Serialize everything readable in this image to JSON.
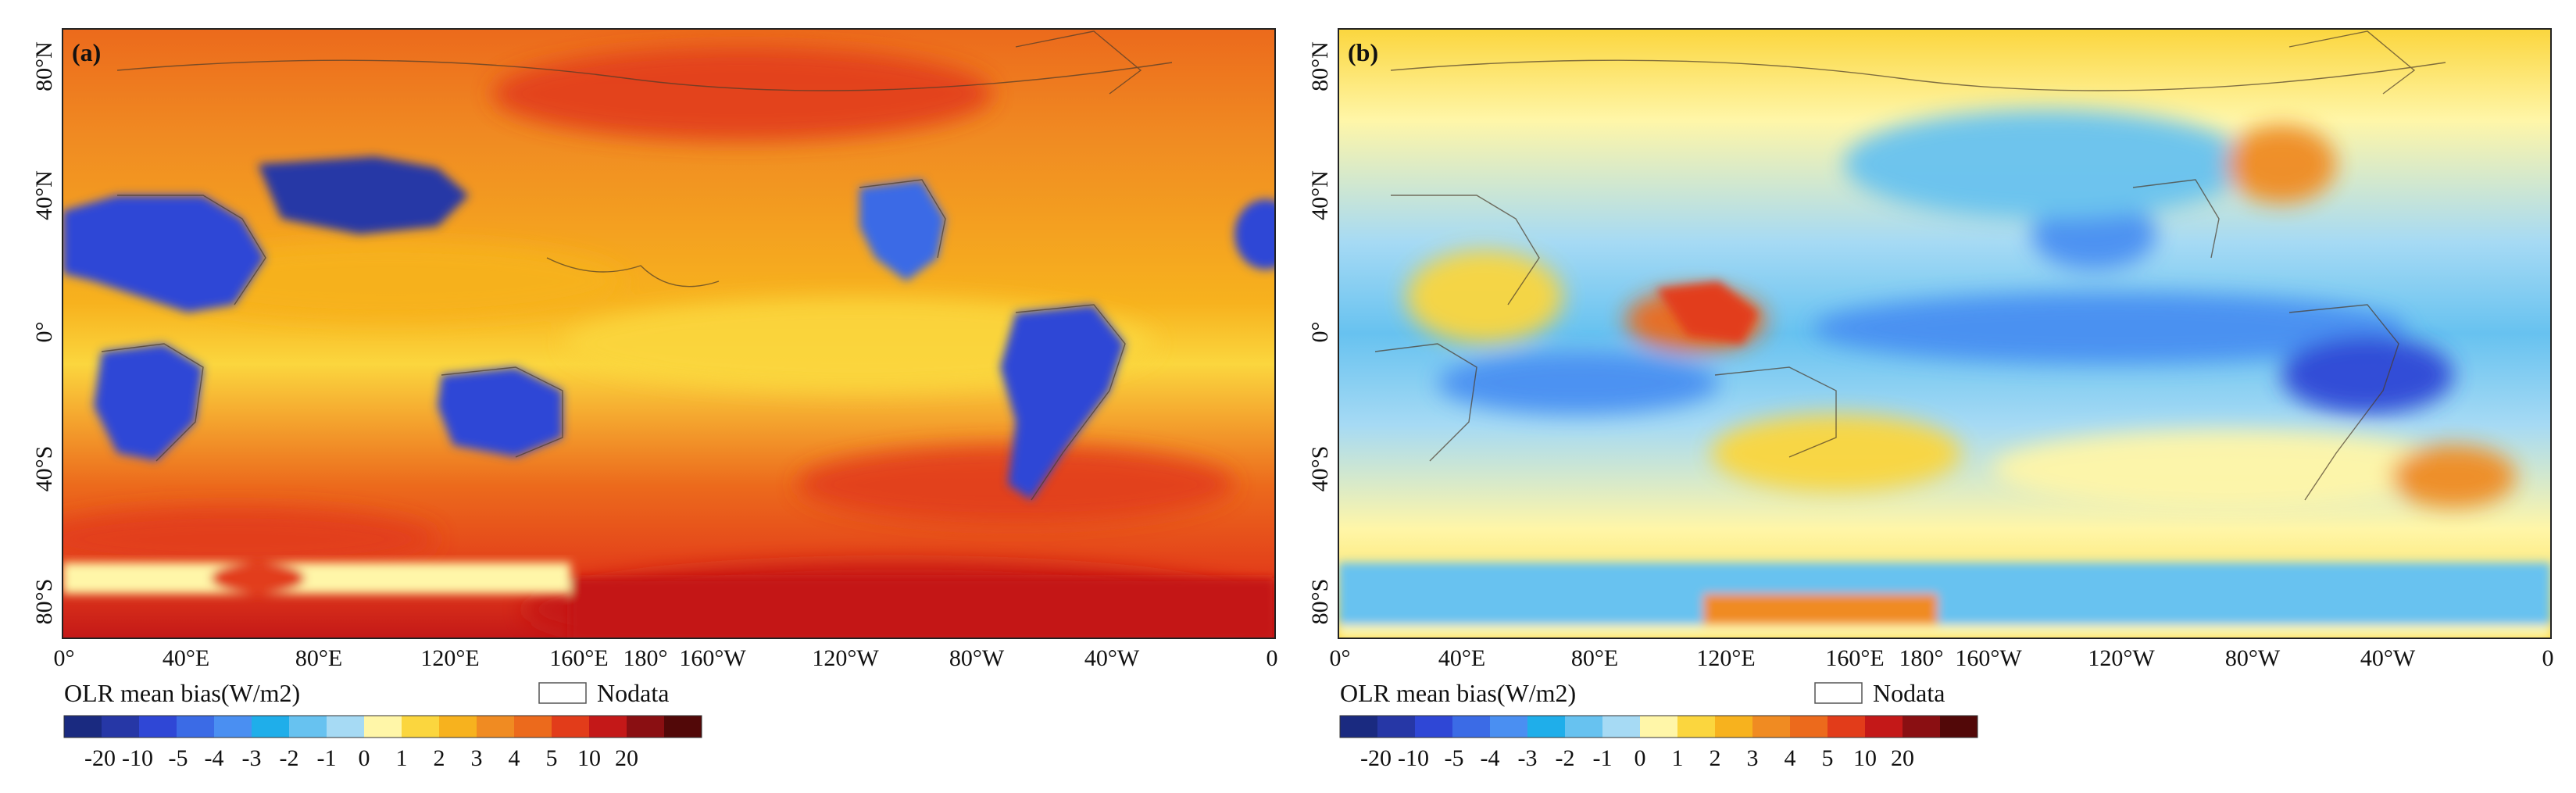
{
  "colors": {
    "scale": [
      "#1a2a80",
      "#2637a6",
      "#2f47d6",
      "#3b6be6",
      "#4a8ff2",
      "#1faeea",
      "#67c2f0",
      "#a6daf4",
      "#fff6a8",
      "#fbd63e",
      "#f7b21e",
      "#f08b22",
      "#ec6a1c",
      "#e23c1a",
      "#c41818",
      "#8a0f12",
      "#520808"
    ],
    "frame": "#222222",
    "land_outline": "#4a3a2a"
  },
  "colorbar": {
    "title": "OLR mean bias(W/m2)",
    "nodata_label": "Nodata",
    "tick_labels": [
      "-20",
      "-10",
      "-5",
      "-4",
      "-3",
      "-2",
      "-1",
      "0",
      "1",
      "2",
      "3",
      "4",
      "5",
      "10",
      "20"
    ]
  },
  "axes": {
    "x_ticks": [
      "0°",
      "40°E",
      "80°E",
      "120°E",
      "160°E",
      "180°",
      "160°W",
      "120°W",
      "80°W",
      "40°W",
      "0"
    ],
    "y_ticks": [
      "80°N",
      "40°N",
      "0°",
      "40°S",
      "80°S"
    ]
  },
  "panels": [
    {
      "id": "a",
      "label": "(a)",
      "tone": "warm"
    },
    {
      "id": "b",
      "label": "(b)",
      "tone": "mixed"
    }
  ]
}
